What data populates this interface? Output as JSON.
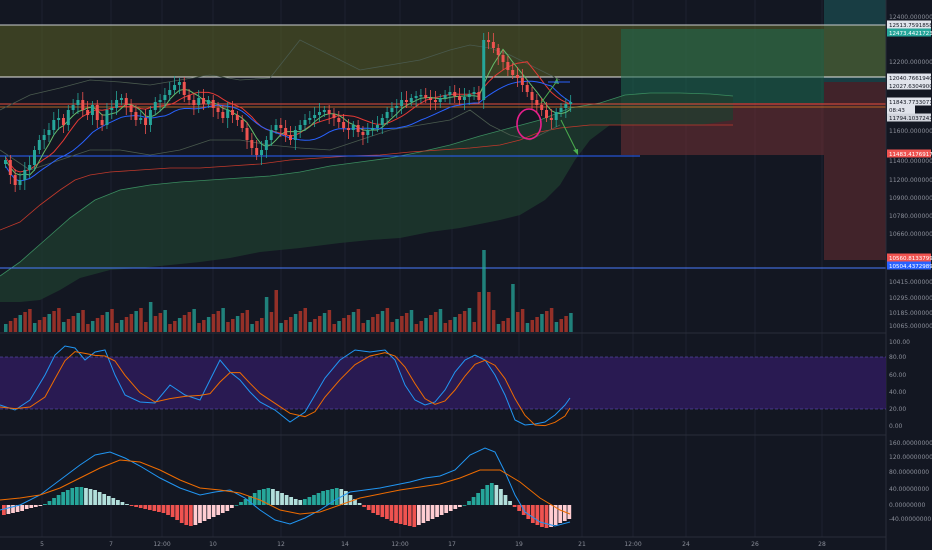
{
  "chart_data": [
    {
      "panel": "price",
      "type": "candlestick",
      "title": "",
      "yticks": [
        "12400.00000000",
        "12200.00000000",
        "11600.00000000",
        "11400.00000000",
        "11200.00000000",
        "10900.00000000",
        "10780.00000000",
        "10660.00000000",
        "10415.00000000",
        "10295.00000000",
        "10185.00000000",
        "10065.00000000"
      ],
      "price_labels": [
        {
          "text": "12513.75918586",
          "bg": "#e0e3eb",
          "fg": "#131722"
        },
        {
          "text": "12473.44217237",
          "bg": "#26a69a",
          "fg": "#ffffff"
        },
        {
          "text": "12040.76619401",
          "bg": "#e0e3eb",
          "fg": "#131722"
        },
        {
          "text": "12027.63049008",
          "bg": "#e0e3eb",
          "fg": "#131722"
        },
        {
          "text": "11843.77330719",
          "bg": "#e0e3eb",
          "fg": "#131722"
        },
        {
          "text": "08:43",
          "bg": "#e0e3eb",
          "fg": "#131722"
        },
        {
          "text": "11794.10372435",
          "bg": "#d1d4dc",
          "fg": "#131722"
        },
        {
          "text": "11483.41769179",
          "bg": "#ef5350",
          "fg": "#ffffff"
        },
        {
          "text": "10560.81337992",
          "bg": "#ef5350",
          "fg": "#ffffff"
        },
        {
          "text": "10504.43729891",
          "bg": "#2962ff",
          "fg": "#ffffff"
        }
      ]
    },
    {
      "panel": "stochastic",
      "type": "line",
      "yticks": [
        "100.00",
        "80.00",
        "60.00",
        "40.00",
        "20.00",
        "0.00"
      ],
      "band": [
        20,
        80
      ]
    },
    {
      "panel": "macd",
      "type": "bar",
      "yticks": [
        "160.00000000",
        "120.00000000",
        "80.00000000",
        "40.00000000",
        "0.00000000",
        "-40.00000000"
      ]
    }
  ],
  "xaxis": {
    "labels": [
      "5",
      "7",
      "12:00",
      "10",
      "12",
      "14",
      "12:00",
      "17",
      "19",
      "21",
      "12:00",
      "24",
      "26",
      "28"
    ]
  },
  "colors": {
    "background": "#131722",
    "up": "#26a69a",
    "down": "#ef5350",
    "grid": "#1e2230",
    "stoch_band": "#2a1a55"
  }
}
